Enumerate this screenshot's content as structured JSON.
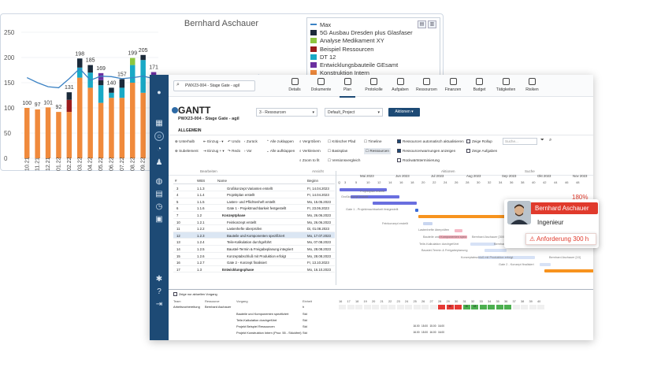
{
  "chart": {
    "title": "Bernhard Aschauer",
    "legend": [
      {
        "label": "Max",
        "color": "#3b82c4",
        "kind": "line"
      },
      {
        "label": "5G Ausbau Dresden plus Glasfaser",
        "color": "#1b2a3a",
        "kind": "box"
      },
      {
        "label": "Analyse Medikament XY",
        "color": "#8dc63f",
        "kind": "box"
      },
      {
        "label": "Beispiel Ressourcen",
        "color": "#9b1c1c",
        "kind": "box"
      },
      {
        "label": "DT 12",
        "color": "#19a9c6",
        "kind": "box"
      },
      {
        "label": "Entwicklungsbauteile GEsamt",
        "color": "#6b2fa0",
        "kind": "box"
      },
      {
        "label": "Konstruktion Intern",
        "color": "#f08a3c",
        "kind": "box"
      }
    ],
    "legend_buttons": [
      "▤",
      "▥"
    ]
  },
  "chart_data": {
    "type": "bar",
    "ylim": [
      0,
      250
    ],
    "yticks": [
      0,
      50,
      100,
      150,
      200,
      250
    ],
    "categories": [
      "10.21",
      "11.21",
      "12.21",
      "01.22",
      "02.22",
      "03.22",
      "04.22",
      "05.22",
      "06.22",
      "07.22",
      "08.22",
      "09.22",
      "10.22",
      "11.22"
    ],
    "totals": [
      100,
      97,
      101,
      92,
      131,
      198,
      185,
      169,
      140,
      157,
      199,
      205,
      171,
      0
    ],
    "max_line": [
      160,
      150,
      142,
      140,
      158,
      178,
      155,
      163,
      162,
      158,
      160,
      163,
      158,
      150
    ],
    "series": [
      {
        "name": "Konstruktion Intern",
        "color": "#f08a3c",
        "values": [
          100,
          97,
          101,
          92,
          92,
          160,
          140,
          110,
          120,
          120,
          150,
          130,
          100,
          0
        ]
      },
      {
        "name": "Beispiel Ressourcen",
        "color": "#9b1c1c",
        "values": [
          0,
          0,
          0,
          0,
          24,
          0,
          0,
          0,
          0,
          0,
          0,
          0,
          0,
          0
        ]
      },
      {
        "name": "DT 12",
        "color": "#19a9c6",
        "values": [
          0,
          0,
          0,
          0,
          0,
          20,
          30,
          35,
          10,
          20,
          35,
          65,
          40,
          0
        ]
      },
      {
        "name": "5G Ausbau Dresden plus Glasfaser",
        "color": "#1b2a3a",
        "values": [
          0,
          0,
          0,
          0,
          15,
          18,
          15,
          10,
          10,
          17,
          0,
          10,
          10,
          0
        ]
      },
      {
        "name": "Analyse Medikament XY",
        "color": "#8dc63f",
        "values": [
          0,
          0,
          0,
          0,
          0,
          0,
          0,
          0,
          0,
          0,
          14,
          0,
          15,
          0
        ]
      },
      {
        "name": "Entwicklungsbauteile GEsamt",
        "color": "#6b2fa0",
        "values": [
          0,
          0,
          0,
          0,
          0,
          0,
          0,
          14,
          0,
          0,
          0,
          0,
          6,
          0
        ]
      }
    ]
  },
  "app": {
    "search_value": "PWX23-004 - Stage Gate - agil",
    "nav_tabs": [
      "Details",
      "Dokumente",
      "Plan",
      "Protokolle",
      "Aufgaben",
      "Ressourcen",
      "Finanzen",
      "Budget",
      "Tätigkeiten",
      "Risiken"
    ],
    "title": "GANTT",
    "subtitle": "PWX23-004 - Stage Gate - agil",
    "dropdown_resources": "3 - Ressourcen",
    "dropdown_project": "Default_Project",
    "actions_label": "Aktionen",
    "tab_general": "ALLGEMEIN",
    "ribbon": {
      "unterhalb": "Unterhalb",
      "einzug_minus": "Einzug -",
      "undo": "Undo",
      "zurueck": "Zurück",
      "alle_zuklappen": "Alle zuklappen",
      "vergroessern": "Vergrößern",
      "kritischer_pfad": "Kritischer Pfad",
      "timeline": "Timeline",
      "subelement": "Subelement",
      "einzug_plus": "Einzug +",
      "redo": "Redo",
      "vor": "Vor",
      "alle_aufklappen": "Alle aufklappen",
      "verkleinern": "Verkleinern",
      "basisplan": "Basisplan",
      "ressourcen": "Ressourcen",
      "zoom": "Zoom to fit",
      "versionsvergleich": "Versionsvergleich",
      "opt1": "Ressourcen automatisch aktualisieren",
      "opt2": "Ressourcenwarnungen anzeigen",
      "opt3": "Rückwärtsterminierung",
      "opt4": "Zeige Rollup",
      "opt5": "Zeige Aufgaben",
      "search_placeholder": "Suche...",
      "group_bearbeiten": "Bearbeiten",
      "group_ansicht": "Ansicht",
      "group_aktionen": "Aktionen",
      "group_suche": "Suche"
    },
    "table_headers": [
      "#",
      "WBS",
      "Name",
      "Beginn"
    ],
    "rows": [
      {
        "n": "3",
        "wbs": "1.1.3",
        "name": "Großkonzept Varianten erstellt",
        "date": "Fr, 14.04.2023"
      },
      {
        "n": "4",
        "wbs": "1.1.4",
        "name": "Projektplan erstellt",
        "date": "Fr, 14.04.2023"
      },
      {
        "n": "5",
        "wbs": "1.1.5",
        "name": "Lasten- und Pflichtenheft erstellt",
        "date": "Mo, 15.05.2023"
      },
      {
        "n": "6",
        "wbs": "1.1.6",
        "name": "Gate 1 - Projektmachbarkeit festgestellt",
        "date": "Fr, 23.06.2023"
      },
      {
        "n": "7",
        "wbs": "1.2",
        "name": "Konzeptphase",
        "date": "Mo, 26.06.2023"
      },
      {
        "n": "10",
        "wbs": "1.2.1",
        "name": "Feinkonzept erstellt",
        "date": "Mo, 26.06.2023"
      },
      {
        "n": "11",
        "wbs": "1.2.2",
        "name": "Lastenhefte überprüfen",
        "date": "Di, 01.08.2023"
      },
      {
        "n": "12",
        "wbs": "1.2.3",
        "name": "Bauteile und Komponenten spezifiziert",
        "date": "Mo, 17.07.2023"
      },
      {
        "n": "13",
        "wbs": "1.2.4",
        "name": "Teile-Kalkulation durchgeführt",
        "date": "Mo, 07.08.2023"
      },
      {
        "n": "14",
        "wbs": "1.2.5",
        "name": "Baustel-Termin & Freigabeplanung integriert",
        "date": "Mo, 28.08.2023"
      },
      {
        "n": "15",
        "wbs": "1.2.6",
        "name": "Konzeptabschluß mit Produktion erfolgt",
        "date": "Mo, 28.08.2023"
      },
      {
        "n": "16",
        "wbs": "1.2.7",
        "name": "Gate 2 - Konzept finalisiert",
        "date": "Fr, 13.10.2023"
      },
      {
        "n": "17",
        "wbs": "1.3",
        "name": "Entwicklungsphase",
        "date": "Mo, 16.10.2023"
      }
    ],
    "months": [
      "Mai 2023",
      "Jun 2023",
      "Jul 2023",
      "Aug 2023",
      "Sep 2023",
      "Okt 2023",
      "Nov 2023"
    ],
    "week_label": "Q",
    "weeks": [
      "3",
      "5",
      "10",
      "12",
      "14",
      "16",
      "18",
      "20",
      "22",
      "24",
      "26",
      "28",
      "30",
      "32",
      "34",
      "36",
      "38",
      "40",
      "42",
      "44",
      "46",
      "48"
    ],
    "bar_labels": [
      "Projektplan erstellt",
      "Großkonzept erstellt",
      "Gate 1 - Projektmachbarkeit festgestellt",
      "Feinkonzept erstellt",
      "Lastenhefte überprüfen",
      "Bauteile und Komponenten spez.",
      "Bernhard Aschauer [300]",
      "Teile-Kalkulation durchgeführt",
      "Bernhard Aschauer [20]",
      "Baustel-Termin & Freigabeplanung",
      "Konzeptabschluß mit Produktion erfolgt",
      "Bernhard Aschauer [10]",
      "Gate 2 - Konzept finalisiert"
    ],
    "resource_pane": {
      "filter_label": "Zeige nur aktuellen Vorgang",
      "headers": [
        "Team",
        "Ressource",
        "Vorgang",
        "Einheit"
      ],
      "team": "Arbeitsvorbereitung",
      "resource": "Bernhard Aschauer",
      "unit_top": "h",
      "tasks": [
        {
          "name": "Bauteile und Komponenten spezifiziert",
          "unit": "Std"
        },
        {
          "name": "Teile-Kalkulation durchgeführt",
          "unit": "Std"
        },
        {
          "name": "Projekt Beispiel Ressourcen",
          "unit": "Std"
        },
        {
          "name": "Projekt Konstruktion Intern (Proz. 55 - Stückfrei)",
          "unit": "Std"
        }
      ],
      "week_cols": [
        "16",
        "17",
        "18",
        "19",
        "20",
        "21",
        "22",
        "23",
        "24",
        "25",
        "26",
        "27",
        "28",
        "29",
        "30",
        "31",
        "32",
        "33",
        "34",
        "35",
        "36",
        "37",
        "38",
        "39",
        "40"
      ],
      "top_row": [
        "",
        "",
        "",
        "",
        "",
        "",
        "",
        "",
        "",
        "",
        "",
        "",
        "",
        "15",
        "",
        "16",
        "18",
        "",
        "",
        "",
        "",
        "",
        "",
        "",
        ""
      ],
      "cells": [
        "16.00",
        "15.00",
        "15.00",
        "16.00",
        "16.00",
        "15.00",
        "16.00",
        "16.00"
      ]
    },
    "profile": {
      "percent": "180%",
      "name": "Bernhard Aschauer",
      "role": "Ingenieur",
      "warning": "Anforderung 300 h"
    }
  }
}
